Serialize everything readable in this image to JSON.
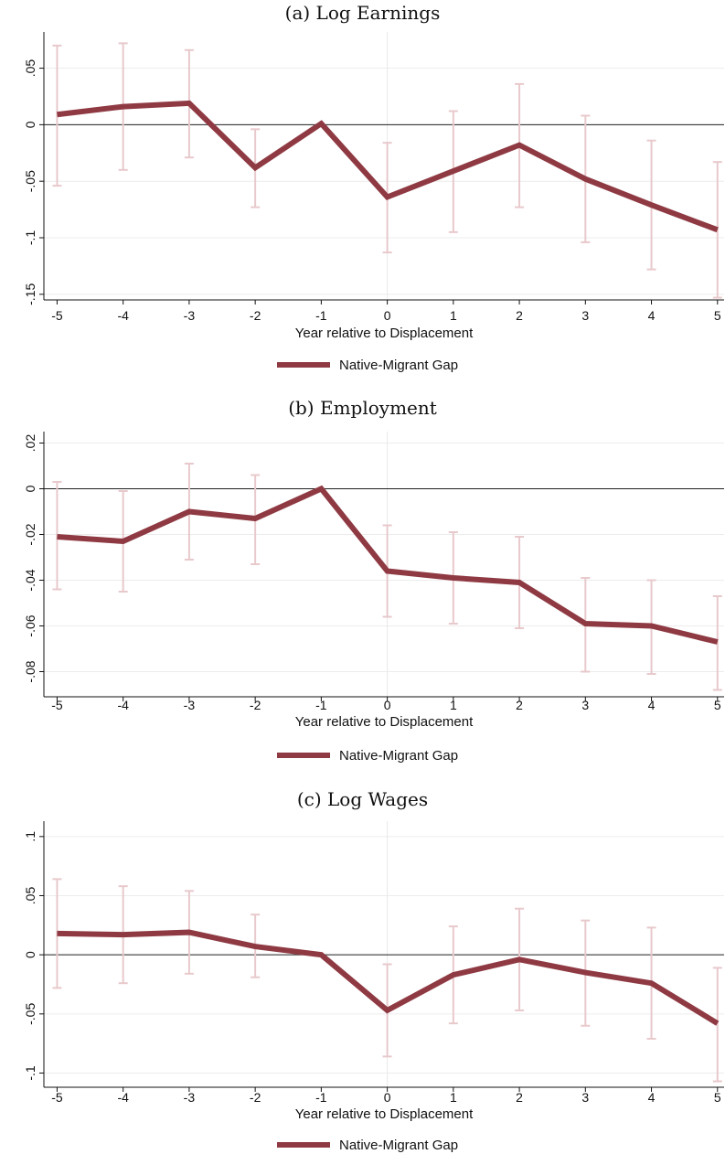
{
  "chart_data": [
    {
      "type": "line",
      "title": "(a) Log Earnings",
      "xlabel": "Year relative to Displacement",
      "ylabel": "",
      "x": [
        -5,
        -4,
        -3,
        -2,
        -1,
        0,
        1,
        2,
        3,
        4,
        5
      ],
      "xticks": [
        "-5",
        "-4",
        "-3",
        "-2",
        "-1",
        "0",
        "1",
        "2",
        "3",
        "4",
        "5"
      ],
      "yticks": [
        0.05,
        0,
        -0.05,
        -0.1,
        -0.15
      ],
      "ytick_labels": [
        ".05",
        "0",
        "-.05",
        "-.1",
        "-.15"
      ],
      "ylim": [
        -0.155,
        0.082
      ],
      "grid": true,
      "legend_position": "bottom-center",
      "series": [
        {
          "name": "Native-Migrant Gap",
          "color": "#8f3a43",
          "values": [
            0.009,
            0.016,
            0.019,
            -0.038,
            0.001,
            -0.064,
            -0.041,
            -0.018,
            -0.048,
            -0.071,
            -0.093
          ],
          "ci_low": [
            -0.054,
            -0.04,
            -0.029,
            -0.073,
            0.0,
            -0.113,
            -0.095,
            -0.073,
            -0.104,
            -0.128,
            -0.153
          ],
          "ci_high": [
            0.07,
            0.072,
            0.066,
            -0.004,
            0.0,
            -0.016,
            0.012,
            0.036,
            0.008,
            -0.014,
            -0.033
          ]
        }
      ]
    },
    {
      "type": "line",
      "title": "(b) Employment",
      "xlabel": "Year relative to Displacement",
      "ylabel": "",
      "x": [
        -5,
        -4,
        -3,
        -2,
        -1,
        0,
        1,
        2,
        3,
        4,
        5
      ],
      "xticks": [
        "-5",
        "-4",
        "-3",
        "-2",
        "-1",
        "0",
        "1",
        "2",
        "3",
        "4",
        "5"
      ],
      "yticks": [
        0.02,
        0,
        -0.02,
        -0.04,
        -0.06,
        -0.08
      ],
      "ytick_labels": [
        ".02",
        "0",
        "-.02",
        "-.04",
        "-.06",
        "-.08"
      ],
      "ylim": [
        -0.091,
        0.025
      ],
      "grid": true,
      "legend_position": "bottom-center",
      "series": [
        {
          "name": "Native-Migrant Gap",
          "color": "#8f3a43",
          "values": [
            -0.021,
            -0.023,
            -0.01,
            -0.013,
            0.0,
            -0.036,
            -0.039,
            -0.041,
            -0.059,
            -0.06,
            -0.067
          ],
          "ci_low": [
            -0.044,
            -0.045,
            -0.031,
            -0.033,
            0.0,
            -0.056,
            -0.059,
            -0.061,
            -0.08,
            -0.081,
            -0.088
          ],
          "ci_high": [
            0.003,
            -0.001,
            0.011,
            0.006,
            0.0,
            -0.016,
            -0.019,
            -0.021,
            -0.039,
            -0.04,
            -0.047
          ]
        }
      ]
    },
    {
      "type": "line",
      "title": "(c) Log Wages",
      "xlabel": "Year relative to Displacement",
      "ylabel": "",
      "x": [
        -5,
        -4,
        -3,
        -2,
        -1,
        0,
        1,
        2,
        3,
        4,
        5
      ],
      "xticks": [
        "-5",
        "-4",
        "-3",
        "-2",
        "-1",
        "0",
        "1",
        "2",
        "3",
        "4",
        "5"
      ],
      "yticks": [
        0.1,
        0.05,
        0,
        -0.05,
        -0.1
      ],
      "ytick_labels": [
        ".1",
        ".05",
        "0",
        "-.05",
        "-.1"
      ],
      "ylim": [
        -0.112,
        0.113
      ],
      "grid": true,
      "legend_position": "bottom-center",
      "series": [
        {
          "name": "Native-Migrant Gap",
          "color": "#8f3a43",
          "values": [
            0.018,
            0.017,
            0.019,
            0.007,
            0.0,
            -0.047,
            -0.017,
            -0.004,
            -0.015,
            -0.024,
            -0.058
          ],
          "ci_low": [
            -0.028,
            -0.024,
            -0.016,
            -0.019,
            0.0,
            -0.086,
            -0.058,
            -0.047,
            -0.06,
            -0.071,
            -0.107
          ],
          "ci_high": [
            0.064,
            0.058,
            0.054,
            0.034,
            0.0,
            -0.008,
            0.024,
            0.039,
            0.029,
            0.023,
            -0.011
          ]
        }
      ]
    }
  ]
}
